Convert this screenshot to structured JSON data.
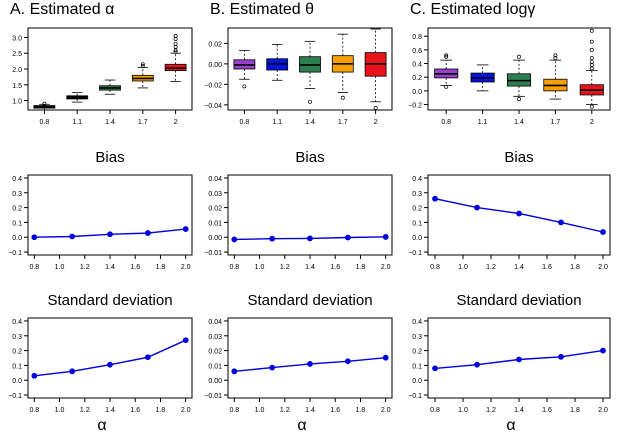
{
  "colors": {
    "groups": [
      "#000000",
      "#000000",
      "#2e7d4f",
      "#f5a000",
      "#e8131b"
    ],
    "panel_boxes": [
      [
        "#000000",
        "#000000",
        "#2e7d4f",
        "#f5a000",
        "#e8131b"
      ],
      [
        "#9b3fcf",
        "#0014e0",
        "#2e7d4f",
        "#f5a000",
        "#e8131b"
      ],
      [
        "#9b3fcf",
        "#0014e0",
        "#2e7d4f",
        "#f5a000",
        "#e8131b"
      ]
    ],
    "line": "#0000dd"
  },
  "chart_data": [
    {
      "type": "box",
      "title": "A.  Estimated α",
      "categories": [
        "0.8",
        "1.1",
        "1.4",
        "1.7",
        "2"
      ],
      "ylim": [
        0.7,
        3.3
      ],
      "yticks": [
        "1.0",
        "1.5",
        "2.0",
        "2.5",
        "3.0"
      ],
      "ytick_values": [
        1.0,
        1.5,
        2.0,
        2.5,
        3.0
      ],
      "boxes": [
        {
          "min": 0.7,
          "q1": 0.76,
          "median": 0.8,
          "q3": 0.84,
          "max": 0.88,
          "outliers": [
            0.9
          ]
        },
        {
          "min": 0.95,
          "q1": 1.05,
          "median": 1.1,
          "q3": 1.15,
          "max": 1.25,
          "outliers": []
        },
        {
          "min": 1.2,
          "q1": 1.33,
          "median": 1.4,
          "q3": 1.47,
          "max": 1.65,
          "outliers": []
        },
        {
          "min": 1.4,
          "q1": 1.62,
          "median": 1.7,
          "q3": 1.8,
          "max": 2.05,
          "outliers": [
            2.1,
            2.15
          ]
        },
        {
          "min": 1.6,
          "q1": 1.95,
          "median": 2.03,
          "q3": 2.15,
          "max": 2.5,
          "outliers": [
            2.55,
            2.6,
            2.7,
            2.8,
            2.95,
            3.05
          ]
        }
      ]
    },
    {
      "type": "box",
      "title": "B.  Estimated θ",
      "categories": [
        "0.8",
        "1.1",
        "1.4",
        "1.7",
        "2"
      ],
      "ylim": [
        -0.045,
        0.035
      ],
      "yticks": [
        "−0.04",
        "−0.02",
        "0.00",
        "0.02"
      ],
      "ytick_values": [
        -0.04,
        -0.02,
        0.0,
        0.02
      ],
      "boxes": [
        {
          "min": -0.015,
          "q1": -0.005,
          "median": -0.001,
          "q3": 0.004,
          "max": 0.013,
          "outliers": [
            -0.022
          ]
        },
        {
          "min": -0.016,
          "q1": -0.006,
          "median": 0.0,
          "q3": 0.005,
          "max": 0.019,
          "outliers": []
        },
        {
          "min": -0.024,
          "q1": -0.008,
          "median": -0.001,
          "q3": 0.007,
          "max": 0.022,
          "outliers": [
            -0.037
          ]
        },
        {
          "min": -0.028,
          "q1": -0.008,
          "median": 0.0,
          "q3": 0.008,
          "max": 0.029,
          "outliers": [
            -0.033
          ]
        },
        {
          "min": -0.037,
          "q1": -0.012,
          "median": 0.0,
          "q3": 0.011,
          "max": 0.034,
          "outliers": [
            -0.043
          ]
        }
      ]
    },
    {
      "type": "box",
      "title": "C.  Estimated logγ",
      "categories": [
        "0.8",
        "1.1",
        "1.4",
        "1.7",
        "2"
      ],
      "ylim": [
        -0.28,
        0.92
      ],
      "yticks": [
        "−0.2",
        "0.0",
        "0.2",
        "0.4",
        "0.6",
        "0.8"
      ],
      "ytick_values": [
        -0.2,
        0.0,
        0.2,
        0.4,
        0.6,
        0.8
      ],
      "boxes": [
        {
          "min": 0.08,
          "q1": 0.19,
          "median": 0.25,
          "q3": 0.32,
          "max": 0.45,
          "outliers": [
            0.5,
            0.52,
            0.06
          ]
        },
        {
          "min": 0.0,
          "q1": 0.13,
          "median": 0.19,
          "q3": 0.26,
          "max": 0.38,
          "outliers": []
        },
        {
          "min": -0.08,
          "q1": 0.07,
          "median": 0.15,
          "q3": 0.25,
          "max": 0.45,
          "outliers": [
            0.5,
            -0.12
          ]
        },
        {
          "min": -0.12,
          "q1": 0.0,
          "median": 0.08,
          "q3": 0.17,
          "max": 0.45,
          "outliers": [
            0.48,
            0.52
          ]
        },
        {
          "min": -0.2,
          "q1": -0.06,
          "median": 0.01,
          "q3": 0.09,
          "max": 0.3,
          "outliers": [
            0.33,
            0.38,
            0.42,
            0.48,
            0.6,
            0.72,
            0.88,
            -0.23
          ]
        }
      ]
    },
    {
      "type": "line",
      "title": "Bias",
      "xlabel": "",
      "x": [
        0.8,
        1.1,
        1.4,
        1.7,
        2.0
      ],
      "y": [
        0.0,
        0.005,
        0.02,
        0.028,
        0.055
      ],
      "xlim": [
        0.75,
        2.05
      ],
      "xticks": [
        "0.8",
        "1.0",
        "1.2",
        "1.4",
        "1.6",
        "1.8",
        "2.0"
      ],
      "xtick_values": [
        0.8,
        1.0,
        1.2,
        1.4,
        1.6,
        1.8,
        2.0
      ],
      "ylim": [
        -0.12,
        0.42
      ],
      "yticks": [
        "−0.1",
        "0.0",
        "0.1",
        "0.2",
        "0.3",
        "0.4"
      ],
      "ytick_values": [
        -0.1,
        0.0,
        0.1,
        0.2,
        0.3,
        0.4
      ]
    },
    {
      "type": "line",
      "title": "Bias",
      "xlabel": "",
      "x": [
        0.8,
        1.1,
        1.4,
        1.7,
        2.0
      ],
      "y": [
        -0.0015,
        -0.001,
        -0.0008,
        -0.0002,
        0.0002
      ],
      "xlim": [
        0.75,
        2.05
      ],
      "xticks": [
        "0.8",
        "1.0",
        "1.2",
        "1.4",
        "1.6",
        "1.8",
        "2.0"
      ],
      "xtick_values": [
        0.8,
        1.0,
        1.2,
        1.4,
        1.6,
        1.8,
        2.0
      ],
      "ylim": [
        -0.012,
        0.042
      ],
      "yticks": [
        "−0.01",
        "0.00",
        "0.01",
        "0.02",
        "0.03",
        "0.04"
      ],
      "ytick_values": [
        -0.01,
        0.0,
        0.01,
        0.02,
        0.03,
        0.04
      ]
    },
    {
      "type": "line",
      "title": "Bias",
      "xlabel": "",
      "x": [
        0.8,
        1.1,
        1.4,
        1.7,
        2.0
      ],
      "y": [
        0.26,
        0.2,
        0.16,
        0.1,
        0.035
      ],
      "xlim": [
        0.75,
        2.05
      ],
      "xticks": [
        "0.8",
        "1.0",
        "1.2",
        "1.4",
        "1.6",
        "1.8",
        "2.0"
      ],
      "xtick_values": [
        0.8,
        1.0,
        1.2,
        1.4,
        1.6,
        1.8,
        2.0
      ],
      "ylim": [
        -0.12,
        0.42
      ],
      "yticks": [
        "−0.1",
        "0.0",
        "0.1",
        "0.2",
        "0.3",
        "0.4"
      ],
      "ytick_values": [
        -0.1,
        0.0,
        0.1,
        0.2,
        0.3,
        0.4
      ]
    },
    {
      "type": "line",
      "title": "Standard deviation",
      "xlabel": "α",
      "x": [
        0.8,
        1.1,
        1.4,
        1.7,
        2.0
      ],
      "y": [
        0.03,
        0.06,
        0.105,
        0.155,
        0.27
      ],
      "xlim": [
        0.75,
        2.05
      ],
      "xticks": [
        "0.8",
        "1.0",
        "1.2",
        "1.4",
        "1.6",
        "1.8",
        "2.0"
      ],
      "xtick_values": [
        0.8,
        1.0,
        1.2,
        1.4,
        1.6,
        1.8,
        2.0
      ],
      "ylim": [
        -0.12,
        0.42
      ],
      "yticks": [
        "−0.1",
        "0.0",
        "0.1",
        "0.2",
        "0.3",
        "0.4"
      ],
      "ytick_values": [
        -0.1,
        0.0,
        0.1,
        0.2,
        0.3,
        0.4
      ]
    },
    {
      "type": "line",
      "title": "Standard deviation",
      "xlabel": "α",
      "x": [
        0.8,
        1.1,
        1.4,
        1.7,
        2.0
      ],
      "y": [
        0.006,
        0.0085,
        0.011,
        0.0128,
        0.0152
      ],
      "xlim": [
        0.75,
        2.05
      ],
      "xticks": [
        "0.8",
        "1.0",
        "1.2",
        "1.4",
        "1.6",
        "1.8",
        "2.0"
      ],
      "xtick_values": [
        0.8,
        1.0,
        1.2,
        1.4,
        1.6,
        1.8,
        2.0
      ],
      "ylim": [
        -0.012,
        0.042
      ],
      "yticks": [
        "−0.01",
        "0.00",
        "0.01",
        "0.02",
        "0.03",
        "0.04"
      ],
      "ytick_values": [
        -0.01,
        0.0,
        0.01,
        0.02,
        0.03,
        0.04
      ]
    },
    {
      "type": "line",
      "title": "Standard deviation",
      "xlabel": "α",
      "x": [
        0.8,
        1.1,
        1.4,
        1.7,
        2.0
      ],
      "y": [
        0.08,
        0.105,
        0.14,
        0.158,
        0.2
      ],
      "xlim": [
        0.75,
        2.05
      ],
      "xticks": [
        "0.8",
        "1.0",
        "1.2",
        "1.4",
        "1.6",
        "1.8",
        "2.0"
      ],
      "xtick_values": [
        0.8,
        1.0,
        1.2,
        1.4,
        1.6,
        1.8,
        2.0
      ],
      "ylim": [
        -0.12,
        0.42
      ],
      "yticks": [
        "−0.1",
        "0.0",
        "0.1",
        "0.2",
        "0.3",
        "0.4"
      ],
      "ytick_values": [
        -0.1,
        0.0,
        0.1,
        0.2,
        0.3,
        0.4
      ]
    }
  ]
}
